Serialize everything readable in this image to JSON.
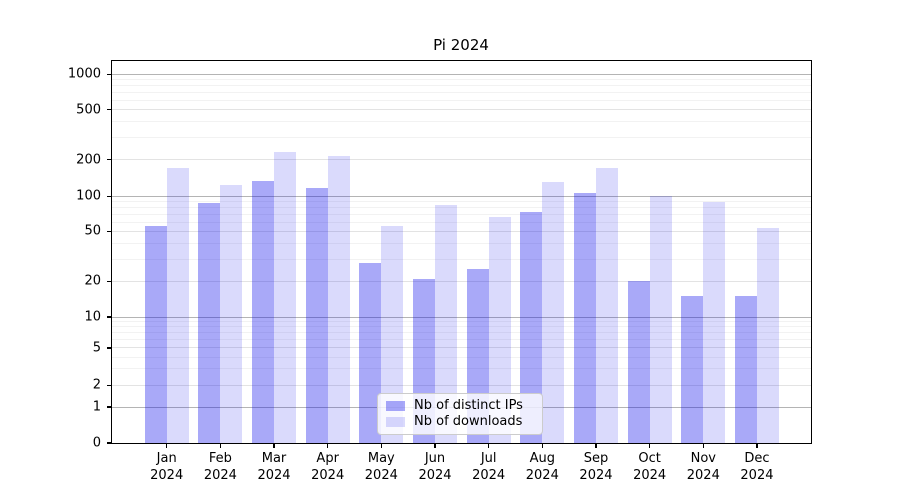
{
  "chart_data": {
    "type": "bar",
    "title": "Pi 2024",
    "categories": [
      "Jan 2024",
      "Feb 2024",
      "Mar 2024",
      "Apr 2024",
      "May 2024",
      "Jun 2024",
      "Jul 2024",
      "Aug 2024",
      "Sep 2024",
      "Oct 2024",
      "Nov 2024",
      "Dec 2024"
    ],
    "series": [
      {
        "name": "Nb of distinct IPs",
        "color": "rgba(10,10,235,0.35)",
        "values": [
          55,
          87,
          133,
          118,
          28,
          21,
          25,
          74,
          106,
          20,
          15,
          15
        ]
      },
      {
        "name": "Nb of downloads",
        "color": "rgba(10,10,235,0.15)",
        "values": [
          170,
          123,
          230,
          212,
          56,
          85,
          67,
          130,
          170,
          100,
          89,
          53
        ]
      }
    ],
    "y_axis": {
      "scale": "symlog",
      "tick_labels": [
        0,
        1,
        2,
        5,
        10,
        20,
        50,
        100,
        200,
        500,
        1000
      ],
      "ylim": [
        0,
        1285
      ]
    },
    "grid": true,
    "legend_position": "lower center"
  }
}
